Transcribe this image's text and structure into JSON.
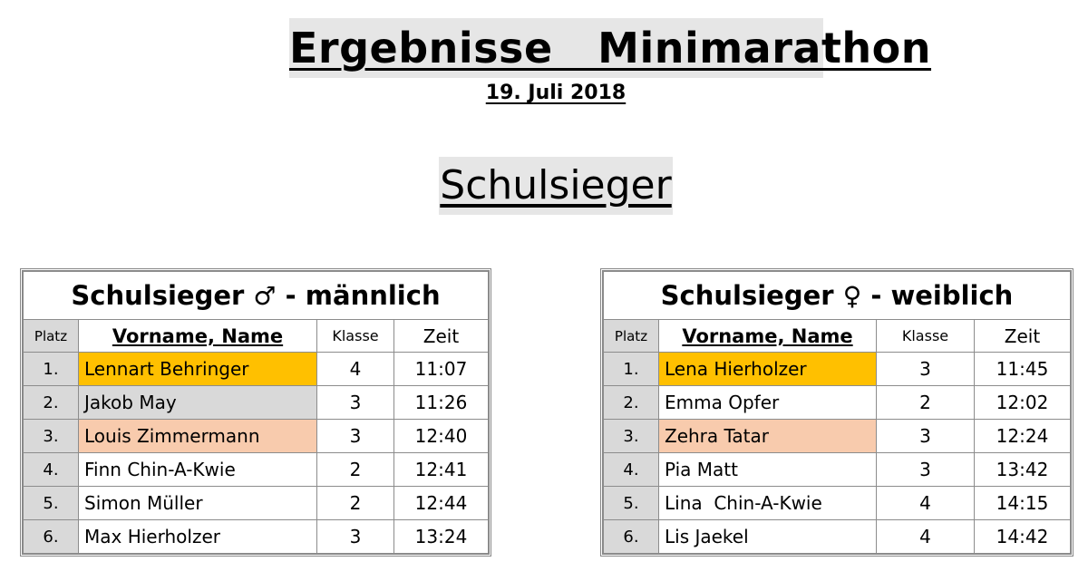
{
  "title": "Ergebnisse   Minimarathon",
  "date": "19. Juli 2018",
  "section": "Schulsieger",
  "columns": {
    "platz": "Platz",
    "name": "Vorname, Name",
    "klasse": "Klasse",
    "zeit": "Zeit"
  },
  "medal_colors": {
    "gold": "#ffc000",
    "silver": "#d9d9d9",
    "bronze": "#f8cbad"
  },
  "male": {
    "title": "Schulsieger",
    "symbol": "♂",
    "suffix": "- männlich",
    "rows": [
      {
        "platz": "1.",
        "name": "Lennart Behringer",
        "klasse": "4",
        "zeit": "11:07"
      },
      {
        "platz": "2.",
        "name": "Jakob May",
        "klasse": "3",
        "zeit": "11:26"
      },
      {
        "platz": "3.",
        "name": "Louis Zimmermann",
        "klasse": "3",
        "zeit": "12:40"
      },
      {
        "platz": "4.",
        "name": "Finn Chin-A-Kwie",
        "klasse": "2",
        "zeit": "12:41"
      },
      {
        "platz": "5.",
        "name": "Simon Müller",
        "klasse": "2",
        "zeit": "12:44"
      },
      {
        "platz": "6.",
        "name": "Max Hierholzer",
        "klasse": "3",
        "zeit": "13:24"
      }
    ]
  },
  "female": {
    "title": "Schulsieger",
    "symbol": "♀",
    "suffix": "- weiblich",
    "rows": [
      {
        "platz": "1.",
        "name": "Lena Hierholzer",
        "klasse": "3",
        "zeit": "11:45"
      },
      {
        "platz": "2.",
        "name": "Emma Opfer",
        "klasse": "2",
        "zeit": "12:02"
      },
      {
        "platz": "3.",
        "name": "Zehra Tatar",
        "klasse": "3",
        "zeit": "12:24"
      },
      {
        "platz": "4.",
        "name": "Pia Matt",
        "klasse": "3",
        "zeit": "13:42"
      },
      {
        "platz": "5.",
        "name": "Lina  Chin-A-Kwie",
        "klasse": "4",
        "zeit": "14:15"
      },
      {
        "platz": "6.",
        "name": "Lis Jaekel",
        "klasse": "4",
        "zeit": "14:42"
      }
    ]
  }
}
